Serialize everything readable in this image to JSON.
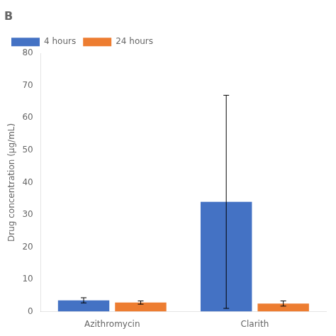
{
  "chart_data": {
    "type": "bar",
    "title": "B",
    "ylabel": "Drug concentration (µg/mL)",
    "categories": [
      "Azithromycin",
      "Clarith"
    ],
    "series": [
      {
        "name": "4 hours",
        "color": "#4472C4",
        "values": [
          3.5,
          34.0
        ],
        "errors": [
          0.8,
          33.0
        ]
      },
      {
        "name": "24 hours",
        "color": "#ED7D31",
        "values": [
          2.8,
          2.5
        ],
        "errors": [
          0.5,
          0.8
        ]
      }
    ],
    "ylim": [
      0,
      80
    ],
    "yticks": [
      0,
      10,
      20,
      30,
      40,
      50,
      60,
      70,
      80
    ],
    "grid": false,
    "legend": "upper left"
  }
}
